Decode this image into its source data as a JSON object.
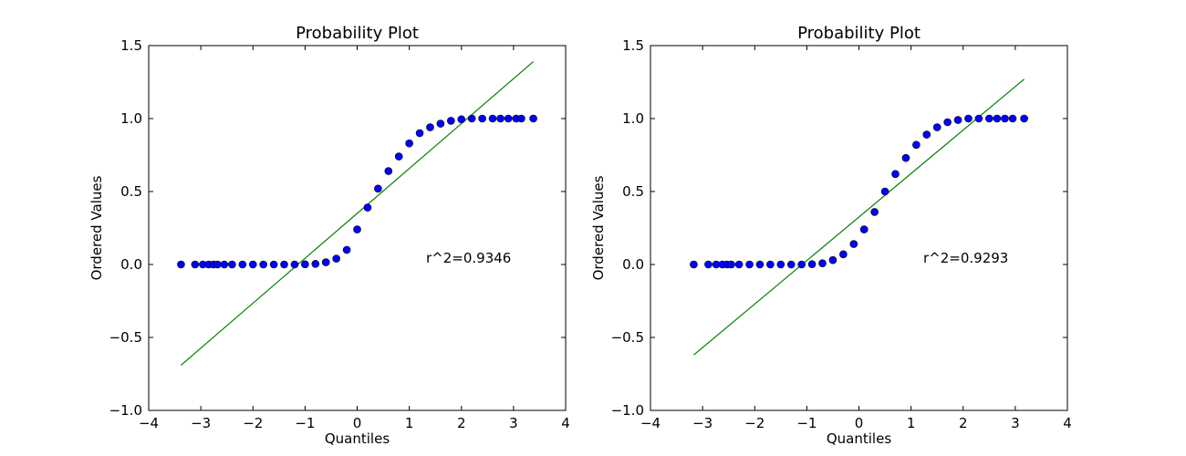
{
  "chart_data": [
    {
      "type": "scatter",
      "title": "Probability Plot",
      "xlabel": "Quantiles",
      "ylabel": "Ordered Values",
      "xlim": [
        -4,
        4
      ],
      "ylim": [
        -1.0,
        1.5
      ],
      "xticks": [
        "−4",
        "−3",
        "−2",
        "−1",
        "0",
        "1",
        "2",
        "3",
        "4"
      ],
      "yticks": [
        "−1.0",
        "−0.5",
        "0.0",
        "0.5",
        "1.0",
        "1.5"
      ],
      "grid": false,
      "annotation": "r^2=0.9346",
      "point_color": "#0000ff",
      "line_color": "#008000",
      "fit_line": {
        "x": [
          -3.38,
          3.38
        ],
        "y": [
          -0.69,
          1.39
        ]
      },
      "points": [
        [
          -3.38,
          0.0
        ],
        [
          -3.11,
          0.0
        ],
        [
          -2.96,
          0.0
        ],
        [
          -2.85,
          0.0
        ],
        [
          -2.76,
          0.0
        ],
        [
          -2.68,
          0.0
        ],
        [
          -2.55,
          0.0
        ],
        [
          -2.4,
          0.0
        ],
        [
          -2.2,
          0.0
        ],
        [
          -2.0,
          0.0
        ],
        [
          -1.8,
          0.0
        ],
        [
          -1.6,
          0.0
        ],
        [
          -1.4,
          0.0
        ],
        [
          -1.2,
          0.0
        ],
        [
          -1.0,
          0.001
        ],
        [
          -0.8,
          0.004
        ],
        [
          -0.6,
          0.015
        ],
        [
          -0.4,
          0.04
        ],
        [
          -0.2,
          0.1
        ],
        [
          0.0,
          0.24
        ],
        [
          0.2,
          0.39
        ],
        [
          0.4,
          0.52
        ],
        [
          0.6,
          0.64
        ],
        [
          0.8,
          0.74
        ],
        [
          1.0,
          0.83
        ],
        [
          1.2,
          0.9
        ],
        [
          1.4,
          0.94
        ],
        [
          1.6,
          0.965
        ],
        [
          1.8,
          0.985
        ],
        [
          2.0,
          0.995
        ],
        [
          2.2,
          1.0
        ],
        [
          2.4,
          1.0
        ],
        [
          2.6,
          1.0
        ],
        [
          2.75,
          1.0
        ],
        [
          2.9,
          1.0
        ],
        [
          3.05,
          1.0
        ],
        [
          3.15,
          1.0
        ],
        [
          3.38,
          1.0
        ]
      ]
    },
    {
      "type": "scatter",
      "title": "Probability Plot",
      "xlabel": "Quantiles",
      "ylabel": "Ordered Values",
      "xlim": [
        -4,
        4
      ],
      "ylim": [
        -1.0,
        1.5
      ],
      "xticks": [
        "−4",
        "−3",
        "−2",
        "−1",
        "0",
        "1",
        "2",
        "3",
        "4"
      ],
      "yticks": [
        "−1.0",
        "−0.5",
        "0.0",
        "0.5",
        "1.0",
        "1.5"
      ],
      "grid": false,
      "annotation": "r^2=0.9293",
      "point_color": "#0000ff",
      "line_color": "#008000",
      "fit_line": {
        "x": [
          -3.17,
          3.17
        ],
        "y": [
          -0.62,
          1.27
        ]
      },
      "points": [
        [
          -3.17,
          0.0
        ],
        [
          -2.89,
          0.0
        ],
        [
          -2.74,
          0.0
        ],
        [
          -2.62,
          0.0
        ],
        [
          -2.53,
          0.0
        ],
        [
          -2.45,
          0.0
        ],
        [
          -2.3,
          0.0
        ],
        [
          -2.1,
          0.0
        ],
        [
          -1.9,
          0.0
        ],
        [
          -1.7,
          0.0
        ],
        [
          -1.5,
          0.0
        ],
        [
          -1.3,
          0.0
        ],
        [
          -1.1,
          0.0
        ],
        [
          -0.9,
          0.002
        ],
        [
          -0.7,
          0.008
        ],
        [
          -0.5,
          0.03
        ],
        [
          -0.3,
          0.07
        ],
        [
          -0.1,
          0.14
        ],
        [
          0.1,
          0.24
        ],
        [
          0.3,
          0.36
        ],
        [
          0.5,
          0.5
        ],
        [
          0.7,
          0.62
        ],
        [
          0.9,
          0.73
        ],
        [
          1.1,
          0.82
        ],
        [
          1.3,
          0.89
        ],
        [
          1.5,
          0.94
        ],
        [
          1.7,
          0.975
        ],
        [
          1.9,
          0.99
        ],
        [
          2.1,
          1.0
        ],
        [
          2.3,
          1.0
        ],
        [
          2.5,
          1.0
        ],
        [
          2.65,
          1.0
        ],
        [
          2.8,
          1.0
        ],
        [
          2.95,
          1.0
        ],
        [
          3.17,
          1.0
        ]
      ]
    }
  ]
}
